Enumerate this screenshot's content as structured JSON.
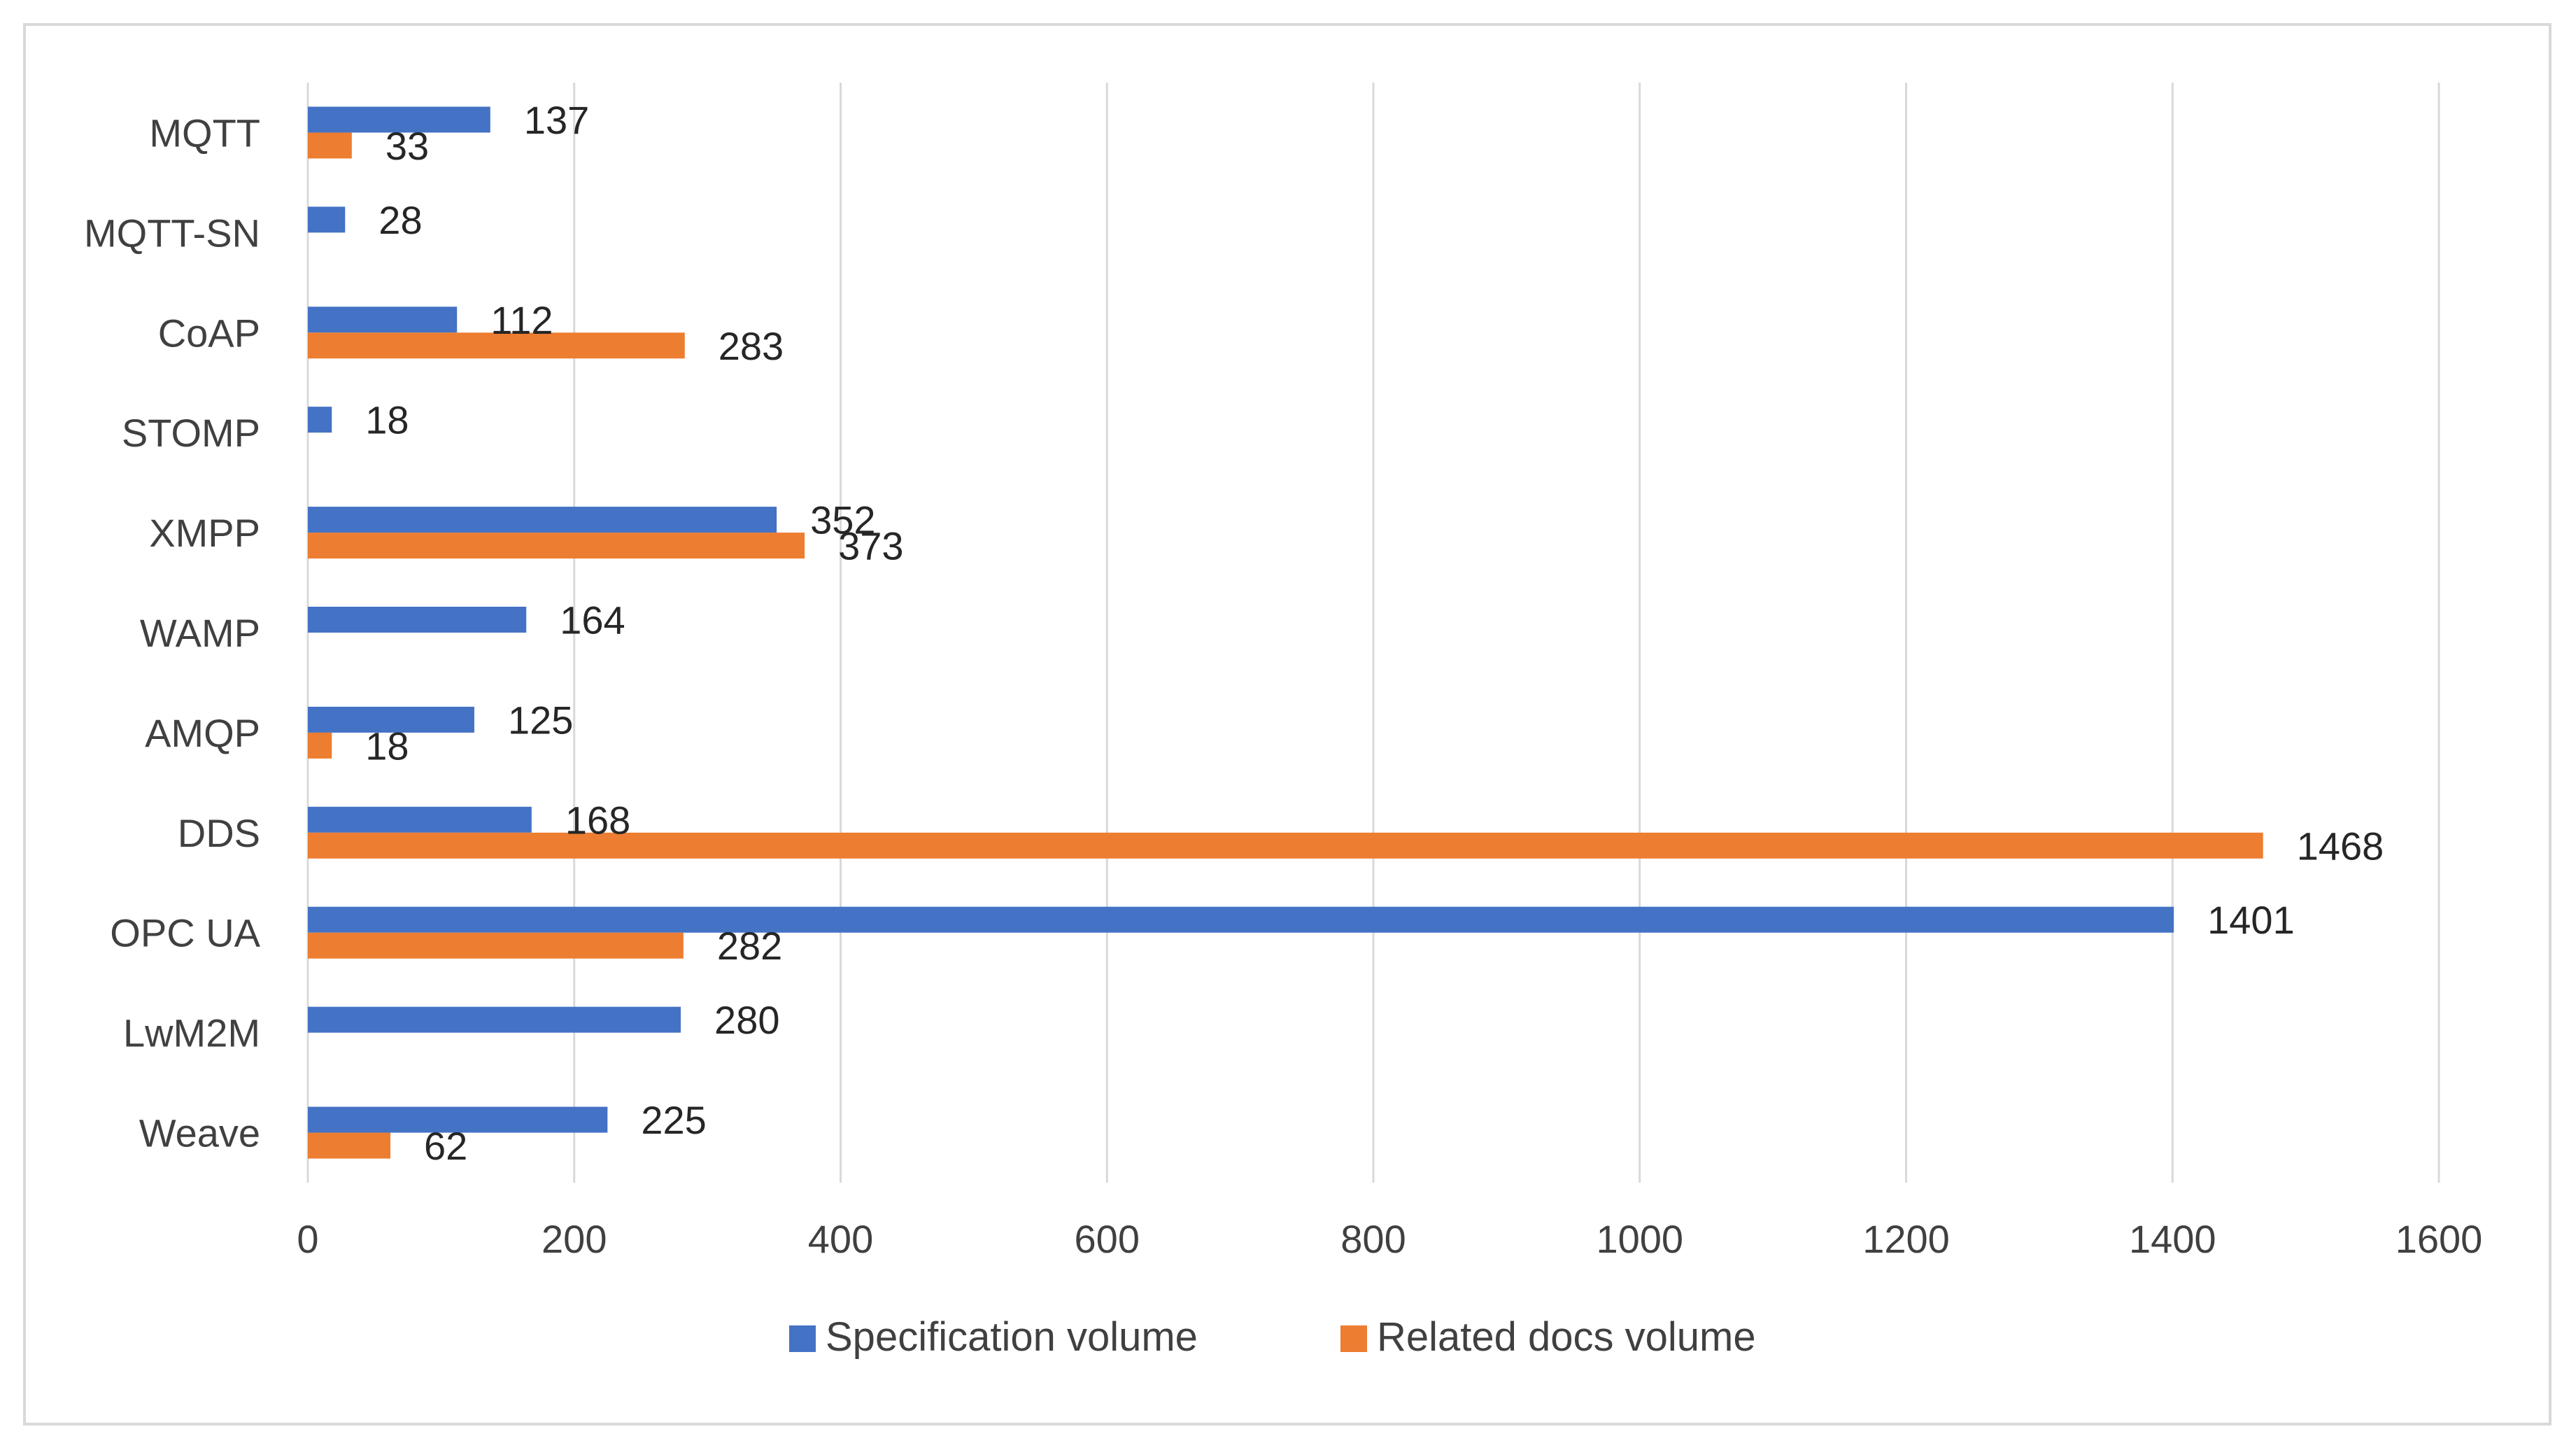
{
  "chart_data": {
    "type": "bar",
    "orientation": "horizontal",
    "title": "",
    "xlabel": "",
    "ylabel": "",
    "xlim": [
      0,
      1600
    ],
    "xticks": [
      0,
      200,
      400,
      600,
      800,
      1000,
      1200,
      1400,
      1600
    ],
    "grid": true,
    "legend_position": "bottom",
    "categories": [
      "MQTT",
      "MQTT-SN",
      "CoAP",
      "STOMP",
      "XMPP",
      "WAMP",
      "AMQP",
      "DDS",
      "OPC UA",
      "LwM2M",
      "Weave"
    ],
    "series": [
      {
        "name": "Specification volume",
        "color": "#4472c4",
        "values": [
          137,
          28,
          112,
          18,
          352,
          164,
          125,
          168,
          1401,
          280,
          225
        ]
      },
      {
        "name": "Related docs volume",
        "color": "#ed7d31",
        "values": [
          33,
          null,
          283,
          null,
          373,
          null,
          18,
          1468,
          282,
          null,
          62
        ]
      }
    ]
  }
}
